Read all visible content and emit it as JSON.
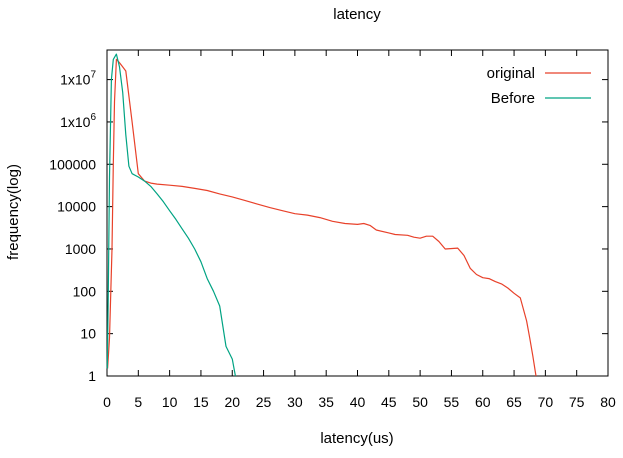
{
  "chart_data": {
    "type": "line",
    "title": "latency",
    "xlabel": "latency(us)",
    "ylabel": "frequency(log)",
    "xlim": [
      0,
      80
    ],
    "ylim": [
      1,
      50000000
    ],
    "yscale": "log",
    "grid": false,
    "legend_position": "top-right",
    "xticks": [
      0,
      5,
      10,
      15,
      20,
      25,
      30,
      35,
      40,
      45,
      50,
      55,
      60,
      65,
      70,
      75,
      80
    ],
    "xtick_labels": [
      "0",
      "5",
      "10",
      "15",
      "20",
      "25",
      "30",
      "35",
      "40",
      "45",
      "50",
      "55",
      "60",
      "65",
      "70",
      "75",
      "80"
    ],
    "yticks": [
      {
        "value": 1,
        "label": "1"
      },
      {
        "value": 10,
        "label": "10"
      },
      {
        "value": 100,
        "label": "100"
      },
      {
        "value": 1000,
        "label": "1000"
      },
      {
        "value": 10000,
        "label": "10000"
      },
      {
        "value": 100000,
        "label": "100000"
      },
      {
        "value": 1000000,
        "base": "1x10",
        "exp": "6"
      },
      {
        "value": 10000000,
        "base": "1x10",
        "exp": "7"
      }
    ],
    "series": [
      {
        "name": "original",
        "color": "#e8412a",
        "points": [
          [
            0.1,
            1.5
          ],
          [
            0.4,
            8
          ],
          [
            0.8,
            1000
          ],
          [
            1.0,
            100000
          ],
          [
            1.2,
            3000000
          ],
          [
            1.5,
            30000000
          ],
          [
            2.0,
            25000000
          ],
          [
            2.5,
            20000000
          ],
          [
            3.0,
            16000000
          ],
          [
            4.0,
            1000000
          ],
          [
            5.0,
            60000
          ],
          [
            6.0,
            40000
          ],
          [
            7.0,
            36000
          ],
          [
            8.0,
            34000
          ],
          [
            10.0,
            32000
          ],
          [
            12.0,
            30000
          ],
          [
            14.0,
            27000
          ],
          [
            16.0,
            24000
          ],
          [
            18.0,
            20000
          ],
          [
            20.0,
            17000
          ],
          [
            22.0,
            14000
          ],
          [
            24.0,
            11500
          ],
          [
            26.0,
            9500
          ],
          [
            28.0,
            8000
          ],
          [
            30.0,
            6800
          ],
          [
            32.0,
            6300
          ],
          [
            34.0,
            5500
          ],
          [
            36.0,
            4500
          ],
          [
            38.0,
            4000
          ],
          [
            40.0,
            3800
          ],
          [
            41.0,
            4000
          ],
          [
            42.0,
            3600
          ],
          [
            43.0,
            2800
          ],
          [
            45.0,
            2400
          ],
          [
            46.0,
            2200
          ],
          [
            48.0,
            2100
          ],
          [
            49.0,
            1900
          ],
          [
            50.0,
            1800
          ],
          [
            51.0,
            2000
          ],
          [
            52.0,
            2000
          ],
          [
            53.0,
            1500
          ],
          [
            54.0,
            1000
          ],
          [
            56.0,
            1050
          ],
          [
            57.0,
            700
          ],
          [
            58.0,
            350
          ],
          [
            59.0,
            250
          ],
          [
            60.0,
            210
          ],
          [
            61.0,
            200
          ],
          [
            62.0,
            170
          ],
          [
            63.0,
            150
          ],
          [
            64.0,
            120
          ],
          [
            65.0,
            90
          ],
          [
            66.0,
            70
          ],
          [
            67.0,
            20
          ],
          [
            67.5,
            8
          ],
          [
            68.0,
            3
          ],
          [
            68.5,
            1
          ]
        ]
      },
      {
        "name": "Before",
        "color": "#00a383",
        "points": [
          [
            0.05,
            1.5
          ],
          [
            0.2,
            100
          ],
          [
            0.4,
            50000
          ],
          [
            0.7,
            10000000
          ],
          [
            1.0,
            30000000
          ],
          [
            1.5,
            40000000
          ],
          [
            2.0,
            20000000
          ],
          [
            2.5,
            5000000
          ],
          [
            3.0,
            500000
          ],
          [
            3.5,
            90000
          ],
          [
            4.0,
            60000
          ],
          [
            5.0,
            50000
          ],
          [
            6.0,
            40000
          ],
          [
            7.0,
            30000
          ],
          [
            8.0,
            20000
          ],
          [
            9.0,
            13000
          ],
          [
            10.0,
            8000
          ],
          [
            11.0,
            5000
          ],
          [
            12.0,
            3000
          ],
          [
            13.0,
            1800
          ],
          [
            14.0,
            1000
          ],
          [
            15.0,
            500
          ],
          [
            16.0,
            200
          ],
          [
            17.0,
            100
          ],
          [
            18.0,
            45
          ],
          [
            19.0,
            5
          ],
          [
            20.0,
            2.5
          ],
          [
            20.5,
            1
          ]
        ]
      }
    ]
  }
}
